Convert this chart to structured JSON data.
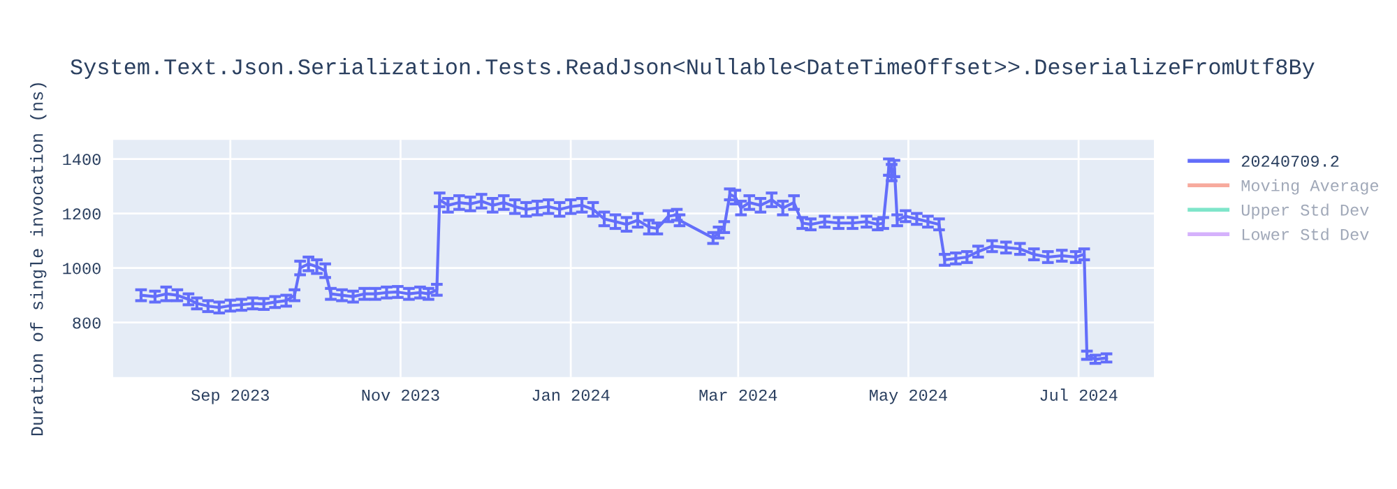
{
  "chart_data": {
    "type": "line",
    "title": "System.Text.Json.Serialization.Tests.ReadJson<Nullable<DateTimeOffset>>.DeserializeFromUtf8By",
    "ylabel": "Duration of single invocation (ns)",
    "x": [
      "2023-07-31",
      "2023-08-05",
      "2023-08-09",
      "2023-08-13",
      "2023-08-17",
      "2023-08-20",
      "2023-08-24",
      "2023-08-28",
      "2023-09-01",
      "2023-09-05",
      "2023-09-09",
      "2023-09-13",
      "2023-09-17",
      "2023-09-21",
      "2023-09-24",
      "2023-09-26",
      "2023-09-29",
      "2023-10-02",
      "2023-10-05",
      "2023-10-07",
      "2023-10-11",
      "2023-10-15",
      "2023-10-19",
      "2023-10-23",
      "2023-10-27",
      "2023-10-31",
      "2023-11-04",
      "2023-11-08",
      "2023-11-11",
      "2023-11-14",
      "2023-11-15",
      "2023-11-18",
      "2023-11-22",
      "2023-11-26",
      "2023-11-30",
      "2023-12-04",
      "2023-12-08",
      "2023-12-12",
      "2023-12-16",
      "2023-12-20",
      "2023-12-24",
      "2023-12-28",
      "2024-01-01",
      "2024-01-05",
      "2024-01-09",
      "2024-01-13",
      "2024-01-17",
      "2024-01-21",
      "2024-01-25",
      "2024-01-29",
      "2024-02-01",
      "2024-02-05",
      "2024-02-08",
      "2024-02-09",
      "2024-02-21",
      "2024-02-23",
      "2024-02-25",
      "2024-02-27",
      "2024-02-29",
      "2024-03-02",
      "2024-03-05",
      "2024-03-09",
      "2024-03-13",
      "2024-03-17",
      "2024-03-21",
      "2024-03-24",
      "2024-03-27",
      "2024-04-01",
      "2024-04-06",
      "2024-04-11",
      "2024-04-16",
      "2024-04-20",
      "2024-04-22",
      "2024-04-24",
      "2024-04-25",
      "2024-04-26",
      "2024-04-27",
      "2024-04-30",
      "2024-05-04",
      "2024-05-08",
      "2024-05-12",
      "2024-05-14",
      "2024-05-18",
      "2024-05-22",
      "2024-05-26",
      "2024-05-31",
      "2024-06-05",
      "2024-06-10",
      "2024-06-15",
      "2024-06-20",
      "2024-06-25",
      "2024-06-30",
      "2024-07-03",
      "2024-07-04",
      "2024-07-07",
      "2024-07-11"
    ],
    "series": [
      {
        "name": "20240709.2",
        "color": "#636efa",
        "values": [
          900,
          895,
          905,
          900,
          885,
          870,
          860,
          855,
          862,
          865,
          870,
          868,
          875,
          880,
          900,
          1000,
          1015,
          1005,
          990,
          905,
          900,
          895,
          905,
          905,
          910,
          912,
          905,
          910,
          905,
          920,
          1250,
          1230,
          1240,
          1235,
          1245,
          1230,
          1240,
          1225,
          1215,
          1220,
          1225,
          1215,
          1225,
          1230,
          1215,
          1180,
          1170,
          1160,
          1175,
          1150,
          1145,
          1190,
          1195,
          1175,
          1110,
          1130,
          1150,
          1270,
          1260,
          1220,
          1240,
          1230,
          1250,
          1220,
          1240,
          1165,
          1160,
          1170,
          1165,
          1165,
          1170,
          1160,
          1165,
          1370,
          1350,
          1365,
          1175,
          1190,
          1180,
          1170,
          1160,
          1030,
          1035,
          1040,
          1060,
          1080,
          1075,
          1070,
          1050,
          1040,
          1045,
          1040,
          1050,
          680,
          665,
          670
        ],
        "errors": [
          20,
          20,
          25,
          20,
          20,
          20,
          20,
          20,
          20,
          20,
          20,
          20,
          20,
          20,
          20,
          25,
          25,
          25,
          25,
          20,
          20,
          20,
          20,
          20,
          20,
          20,
          20,
          20,
          20,
          20,
          25,
          25,
          25,
          25,
          25,
          25,
          25,
          25,
          25,
          25,
          25,
          25,
          25,
          25,
          25,
          25,
          25,
          25,
          25,
          25,
          20,
          20,
          20,
          20,
          20,
          20,
          20,
          20,
          25,
          25,
          25,
          25,
          25,
          25,
          25,
          20,
          20,
          20,
          20,
          20,
          20,
          20,
          20,
          30,
          30,
          30,
          20,
          20,
          20,
          20,
          20,
          20,
          20,
          20,
          20,
          20,
          20,
          20,
          20,
          20,
          20,
          20,
          20,
          15,
          15,
          15
        ]
      },
      {
        "name": "Moving Average",
        "color": "#ef553b",
        "values": [
          null,
          null,
          null,
          null,
          null,
          null,
          null,
          null,
          null,
          null,
          null,
          null,
          null,
          null,
          null,
          null,
          null,
          null,
          null,
          null,
          null,
          null,
          null,
          null,
          null,
          null,
          null,
          null,
          null,
          null,
          null,
          null,
          null,
          null,
          null,
          null,
          null,
          null,
          null,
          null,
          null,
          null,
          null,
          null,
          null,
          null,
          null,
          null,
          null,
          null,
          null,
          null,
          null,
          null,
          null,
          null,
          null,
          null,
          null,
          null,
          null,
          null,
          null,
          null,
          null,
          null,
          null,
          null,
          null,
          null,
          null,
          null,
          null,
          null,
          null,
          null,
          null,
          null,
          null,
          null,
          null,
          null,
          null,
          null,
          null,
          null,
          null,
          null,
          null,
          null,
          null,
          null,
          null,
          null,
          null,
          null
        ]
      },
      {
        "name": "Upper Std Dev",
        "color": "#00cc96",
        "values": [
          null,
          null,
          null,
          null,
          null,
          null,
          null,
          null,
          null,
          null,
          null,
          null,
          null,
          null,
          null,
          null,
          null,
          null,
          null,
          null,
          null,
          null,
          null,
          null,
          null,
          null,
          null,
          null,
          null,
          null,
          null,
          null,
          null,
          null,
          null,
          null,
          null,
          null,
          null,
          null,
          null,
          null,
          null,
          null,
          null,
          null,
          null,
          null,
          null,
          null,
          null,
          null,
          null,
          null,
          null,
          null,
          null,
          null,
          null,
          null,
          null,
          null,
          null,
          null,
          null,
          null,
          null,
          null,
          null,
          null,
          null,
          null,
          null,
          null,
          null,
          null,
          null,
          null,
          null,
          null,
          null,
          null,
          null,
          null,
          null,
          null,
          null,
          null,
          null,
          null,
          null,
          null,
          null,
          null,
          null,
          null
        ]
      },
      {
        "name": "Lower Std Dev",
        "color": "#ab63fa",
        "values": [
          null,
          null,
          null,
          null,
          null,
          null,
          null,
          null,
          null,
          null,
          null,
          null,
          null,
          null,
          null,
          null,
          null,
          null,
          null,
          null,
          null,
          null,
          null,
          null,
          null,
          null,
          null,
          null,
          null,
          null,
          null,
          null,
          null,
          null,
          null,
          null,
          null,
          null,
          null,
          null,
          null,
          null,
          null,
          null,
          null,
          null,
          null,
          null,
          null,
          null,
          null,
          null,
          null,
          null,
          null,
          null,
          null,
          null,
          null,
          null,
          null,
          null,
          null,
          null,
          null,
          null,
          null,
          null,
          null,
          null,
          null,
          null,
          null,
          null,
          null,
          null,
          null,
          null,
          null,
          null,
          null,
          null,
          null,
          null,
          null,
          null,
          null,
          null,
          null,
          null,
          null,
          null,
          null,
          null,
          null,
          null
        ]
      }
    ],
    "xlim": [
      "2023-07-21",
      "2024-07-28"
    ],
    "xticks": [
      {
        "value": "2023-09-01",
        "label": "Sep 2023"
      },
      {
        "value": "2023-11-01",
        "label": "Nov 2023"
      },
      {
        "value": "2024-01-01",
        "label": "Jan 2024"
      },
      {
        "value": "2024-03-01",
        "label": "Mar 2024"
      },
      {
        "value": "2024-05-01",
        "label": "May 2024"
      },
      {
        "value": "2024-07-01",
        "label": "Jul 2024"
      }
    ],
    "ylim": [
      600,
      1470
    ],
    "yticks": [
      800,
      1000,
      1200,
      1400
    ],
    "grid": true,
    "legend": "top right",
    "marker": "none",
    "line_style": "solid"
  }
}
